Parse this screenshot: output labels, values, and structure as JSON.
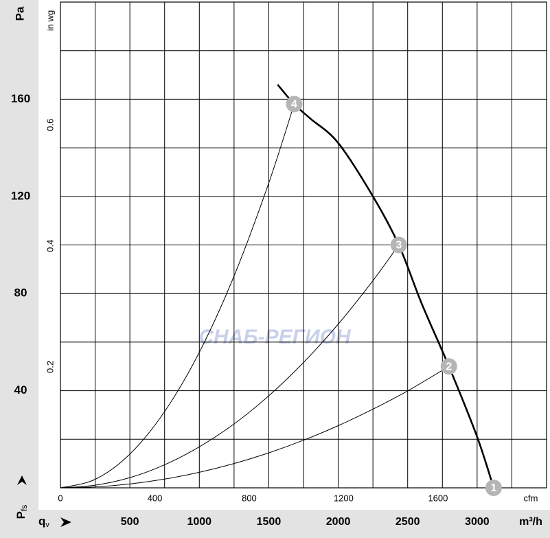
{
  "chart_data": {
    "type": "fan-curve",
    "y_unit": "Pa",
    "y2_unit": "in wg",
    "x_unit": "m³/h",
    "x2_unit": "cfm",
    "pressure_symbol": "P",
    "pressure_subscript": "fs",
    "flow_symbol": "q",
    "flow_subscript": "v",
    "watermark": "СНАБ-РЕГИОН",
    "xlim": [
      0,
      3500
    ],
    "xticks": [
      500,
      1000,
      1500,
      2000,
      2500,
      3000
    ],
    "xgrid": [
      250,
      500,
      750,
      1000,
      1250,
      1500,
      1750,
      2000,
      2250,
      2500,
      2750,
      3000,
      3250
    ],
    "ylim": [
      0,
      200
    ],
    "yticks": [
      40,
      80,
      120,
      160
    ],
    "ygrid": [
      20,
      40,
      60,
      80,
      100,
      120,
      140,
      160,
      180
    ],
    "x2lim": [
      0,
      2060
    ],
    "x2ticks": [
      0,
      400,
      800,
      1200,
      1600
    ],
    "y2lim": [
      0,
      0.803
    ],
    "y2ticks": [
      0.2,
      0.4,
      0.6
    ],
    "fan_curve": {
      "color": "#000000",
      "x": [
        1564,
        1683,
        1800,
        2000,
        2250,
        2436,
        2600,
        2797,
        3000,
        3119
      ],
      "values": [
        166,
        158,
        152,
        142,
        120,
        100,
        76,
        50,
        21,
        0
      ]
    },
    "system_curves": [
      {
        "color": "#000000",
        "x": [
          0,
          250,
          500,
          750,
          1000,
          1250,
          1500,
          1683
        ],
        "values": [
          0,
          3.5,
          13.9,
          31.4,
          55.8,
          87.2,
          125.5,
          158
        ]
      },
      {
        "color": "#000000",
        "x": [
          0,
          250,
          500,
          750,
          1000,
          1250,
          1500,
          1750,
          2000,
          2250,
          2436
        ],
        "values": [
          0,
          1.1,
          4.2,
          9.5,
          16.9,
          26.3,
          37.9,
          51.6,
          67.4,
          85.3,
          100
        ]
      },
      {
        "color": "#000000",
        "x": [
          0,
          250,
          500,
          750,
          1000,
          1250,
          1500,
          1750,
          2000,
          2250,
          2500,
          2797
        ],
        "values": [
          0,
          0.4,
          1.6,
          3.6,
          6.4,
          10,
          14.4,
          19.6,
          25.6,
          32.4,
          39.9,
          50
        ]
      }
    ],
    "points": [
      {
        "label": "1",
        "x": 3119,
        "y": 0
      },
      {
        "label": "2",
        "x": 2797,
        "y": 50
      },
      {
        "label": "3",
        "x": 2436,
        "y": 100
      },
      {
        "label": "4",
        "x": 1683,
        "y": 158
      }
    ]
  }
}
